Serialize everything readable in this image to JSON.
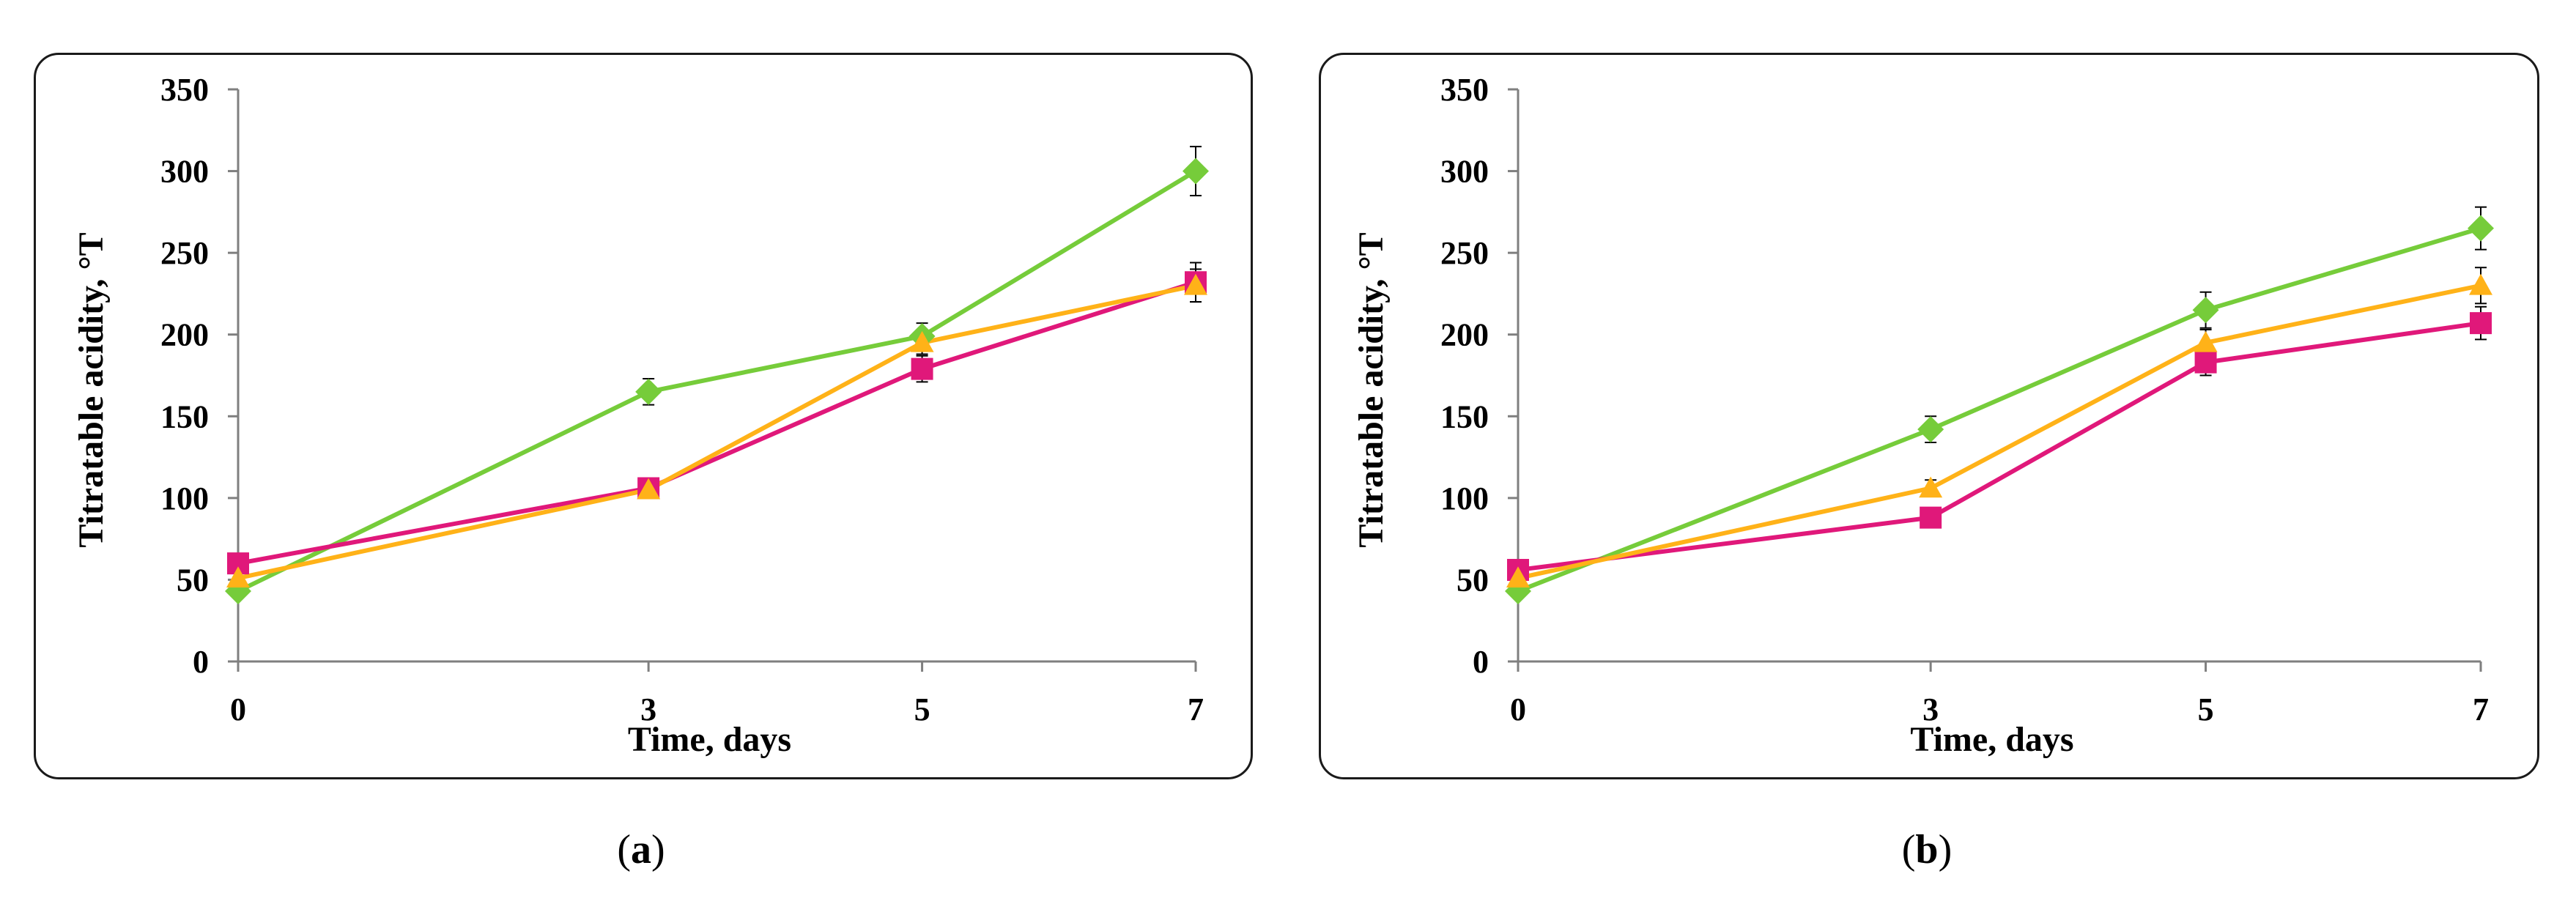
{
  "colors": {
    "green_series": "#76cc3a",
    "magenta_series": "#e0187a",
    "orange_series": "#ffb218",
    "axis": "#7f7f7f",
    "text": "#000000"
  },
  "captions": [
    {
      "open": "(",
      "letter": "a",
      "close": ")"
    },
    {
      "open": "(",
      "letter": "b",
      "close": ")"
    }
  ],
  "chart_data": [
    {
      "type": "line",
      "panel": "a",
      "xlabel": "Time, days",
      "ylabel": "Titratable acidity, °T",
      "x": [
        0,
        3,
        5,
        7
      ],
      "x_tick_labels": [
        "0",
        "3",
        "5",
        "7"
      ],
      "ylim": [
        0,
        350
      ],
      "y_ticks": [
        0,
        50,
        100,
        150,
        200,
        250,
        300,
        350
      ],
      "grid": false,
      "legend": "none",
      "series": [
        {
          "color": "#76cc3a",
          "marker": "diamond",
          "values": [
            43,
            165,
            199,
            300
          ],
          "error": [
            4,
            8,
            8,
            15
          ]
        },
        {
          "color": "#e0187a",
          "marker": "square",
          "values": [
            60,
            106,
            179,
            232
          ],
          "error": [
            3,
            4,
            8,
            12
          ]
        },
        {
          "color": "#ffb218",
          "marker": "triangle",
          "values": [
            51,
            105,
            195,
            230
          ],
          "error": [
            3,
            4,
            7,
            10
          ]
        }
      ]
    },
    {
      "type": "line",
      "panel": "b",
      "xlabel": "Time, days",
      "ylabel": "Titratable acidity, °T",
      "x": [
        0,
        3,
        5,
        7
      ],
      "x_tick_labels": [
        "0",
        "3",
        "5",
        "7"
      ],
      "ylim": [
        0,
        350
      ],
      "y_ticks": [
        0,
        50,
        100,
        150,
        200,
        250,
        300,
        350
      ],
      "grid": false,
      "legend": "none",
      "series": [
        {
          "color": "#76cc3a",
          "marker": "diamond",
          "values": [
            43,
            142,
            215,
            265
          ],
          "error": [
            3,
            8,
            11,
            13
          ]
        },
        {
          "color": "#e0187a",
          "marker": "square",
          "values": [
            56,
            88,
            183,
            207
          ],
          "error": [
            3,
            4,
            8,
            10
          ]
        },
        {
          "color": "#ffb218",
          "marker": "triangle",
          "values": [
            51,
            106,
            195,
            230
          ],
          "error": [
            3,
            5,
            8,
            11
          ]
        }
      ]
    }
  ]
}
